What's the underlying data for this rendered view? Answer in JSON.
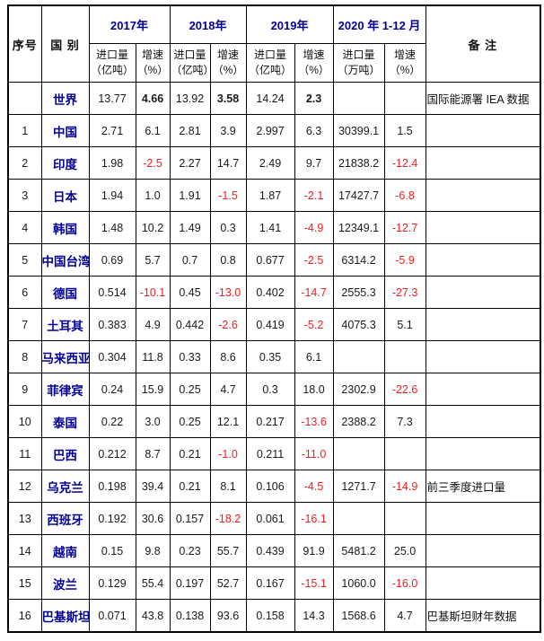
{
  "table": {
    "header": {
      "col_index": "序号",
      "col_country": "国 别",
      "col_remark": "备 注",
      "year_groups": [
        {
          "label": "2017年",
          "sub_import": "进口量",
          "sub_import_unit": "（亿吨）",
          "sub_growth": "增速",
          "sub_growth_unit": "（%）"
        },
        {
          "label": "2018年",
          "sub_import": "进口量",
          "sub_import_unit": "（亿吨）",
          "sub_growth": "增速",
          "sub_growth_unit": "（%）"
        },
        {
          "label": "2019年",
          "sub_import": "进口量",
          "sub_import_unit": "（亿吨）",
          "sub_growth": "增速",
          "sub_growth_unit": "（%）"
        },
        {
          "label": "2020 年 1-12 月",
          "sub_import": "进口量",
          "sub_import_unit": "（万吨）",
          "sub_growth": "增速",
          "sub_growth_unit": "（%）"
        }
      ]
    },
    "colors": {
      "header_blue": "#000099",
      "country_blue": "#000099",
      "negative_red": "#f01e1e",
      "text_black": "#1a1a1a",
      "border_black": "#000000"
    },
    "rows": [
      {
        "no": "",
        "country": "世界",
        "values": [
          "13.77",
          "4.66",
          "13.92",
          "3.58",
          "14.24",
          "2.3",
          "",
          ""
        ],
        "remark": "国际能源署 IEA 数据",
        "bold_growth": true
      },
      {
        "no": "1",
        "country": "中国",
        "values": [
          "2.71",
          "6.1",
          "2.81",
          "3.9",
          "2.997",
          "6.3",
          "30399.1",
          "1.5"
        ],
        "remark": ""
      },
      {
        "no": "2",
        "country": "印度",
        "values": [
          "1.98",
          "-2.5",
          "2.27",
          "14.7",
          "2.49",
          "9.7",
          "21838.2",
          "-12.4"
        ],
        "remark": ""
      },
      {
        "no": "3",
        "country": "日本",
        "values": [
          "1.94",
          "1.0",
          "1.91",
          "-1.5",
          "1.87",
          "-2.1",
          "17427.7",
          "-6.8"
        ],
        "remark": ""
      },
      {
        "no": "4",
        "country": "韩国",
        "values": [
          "1.48",
          "10.2",
          "1.49",
          "0.3",
          "1.41",
          "-4.9",
          "12349.1",
          "-12.7"
        ],
        "remark": ""
      },
      {
        "no": "5",
        "country": "中国台湾",
        "values": [
          "0.69",
          "5.7",
          "0.7",
          "0.8",
          "0.677",
          "-2.5",
          "6314.2",
          "-5.9"
        ],
        "remark": ""
      },
      {
        "no": "6",
        "country": "德国",
        "values": [
          "0.514",
          "-10.1",
          "0.45",
          "-13.0",
          "0.402",
          "-14.7",
          "2555.3",
          "-27.3"
        ],
        "remark": ""
      },
      {
        "no": "7",
        "country": "土耳其",
        "values": [
          "0.383",
          "4.9",
          "0.442",
          "-2.6",
          "0.419",
          "-5.2",
          "4075.3",
          "5.1"
        ],
        "remark": ""
      },
      {
        "no": "8",
        "country": "马来西亚",
        "values": [
          "0.304",
          "11.8",
          "0.33",
          "8.6",
          "0.35",
          "6.1",
          "",
          ""
        ],
        "remark": ""
      },
      {
        "no": "9",
        "country": "菲律宾",
        "values": [
          "0.24",
          "15.9",
          "0.25",
          "4.7",
          "0.3",
          "18.0",
          "2302.9",
          "-22.6"
        ],
        "remark": ""
      },
      {
        "no": "10",
        "country": "泰国",
        "values": [
          "0.22",
          "3.0",
          "0.25",
          "12.1",
          "0.217",
          "-13.6",
          "2388.2",
          "7.3"
        ],
        "remark": ""
      },
      {
        "no": "11",
        "country": "巴西",
        "values": [
          "0.212",
          "8.7",
          "0.21",
          "-1.0",
          "0.211",
          "-11.0",
          "",
          ""
        ],
        "remark": ""
      },
      {
        "no": "12",
        "country": "乌克兰",
        "values": [
          "0.198",
          "39.4",
          "0.21",
          "8.1",
          "0.106",
          "-4.5",
          "1271.7",
          "-14.9"
        ],
        "remark": "前三季度进口量"
      },
      {
        "no": "13",
        "country": "西班牙",
        "values": [
          "0.192",
          "30.6",
          "0.157",
          "-18.2",
          "0.061",
          "-16.1",
          "",
          ""
        ],
        "remark": ""
      },
      {
        "no": "14",
        "country": "越南",
        "values": [
          "0.15",
          "9.8",
          "0.23",
          "55.7",
          "0.439",
          "91.9",
          "5481.2",
          "25.0"
        ],
        "remark": ""
      },
      {
        "no": "15",
        "country": "波兰",
        "values": [
          "0.129",
          "55.4",
          "0.197",
          "52.7",
          "0.167",
          "-15.1",
          "1060.0",
          "-16.0"
        ],
        "remark": ""
      },
      {
        "no": "16",
        "country": "巴基斯坦",
        "values": [
          "0.071",
          "43.8",
          "0.138",
          "93.6",
          "0.158",
          "14.3",
          "1568.6",
          "4.7"
        ],
        "remark": "巴基斯坦财年数据"
      }
    ]
  }
}
